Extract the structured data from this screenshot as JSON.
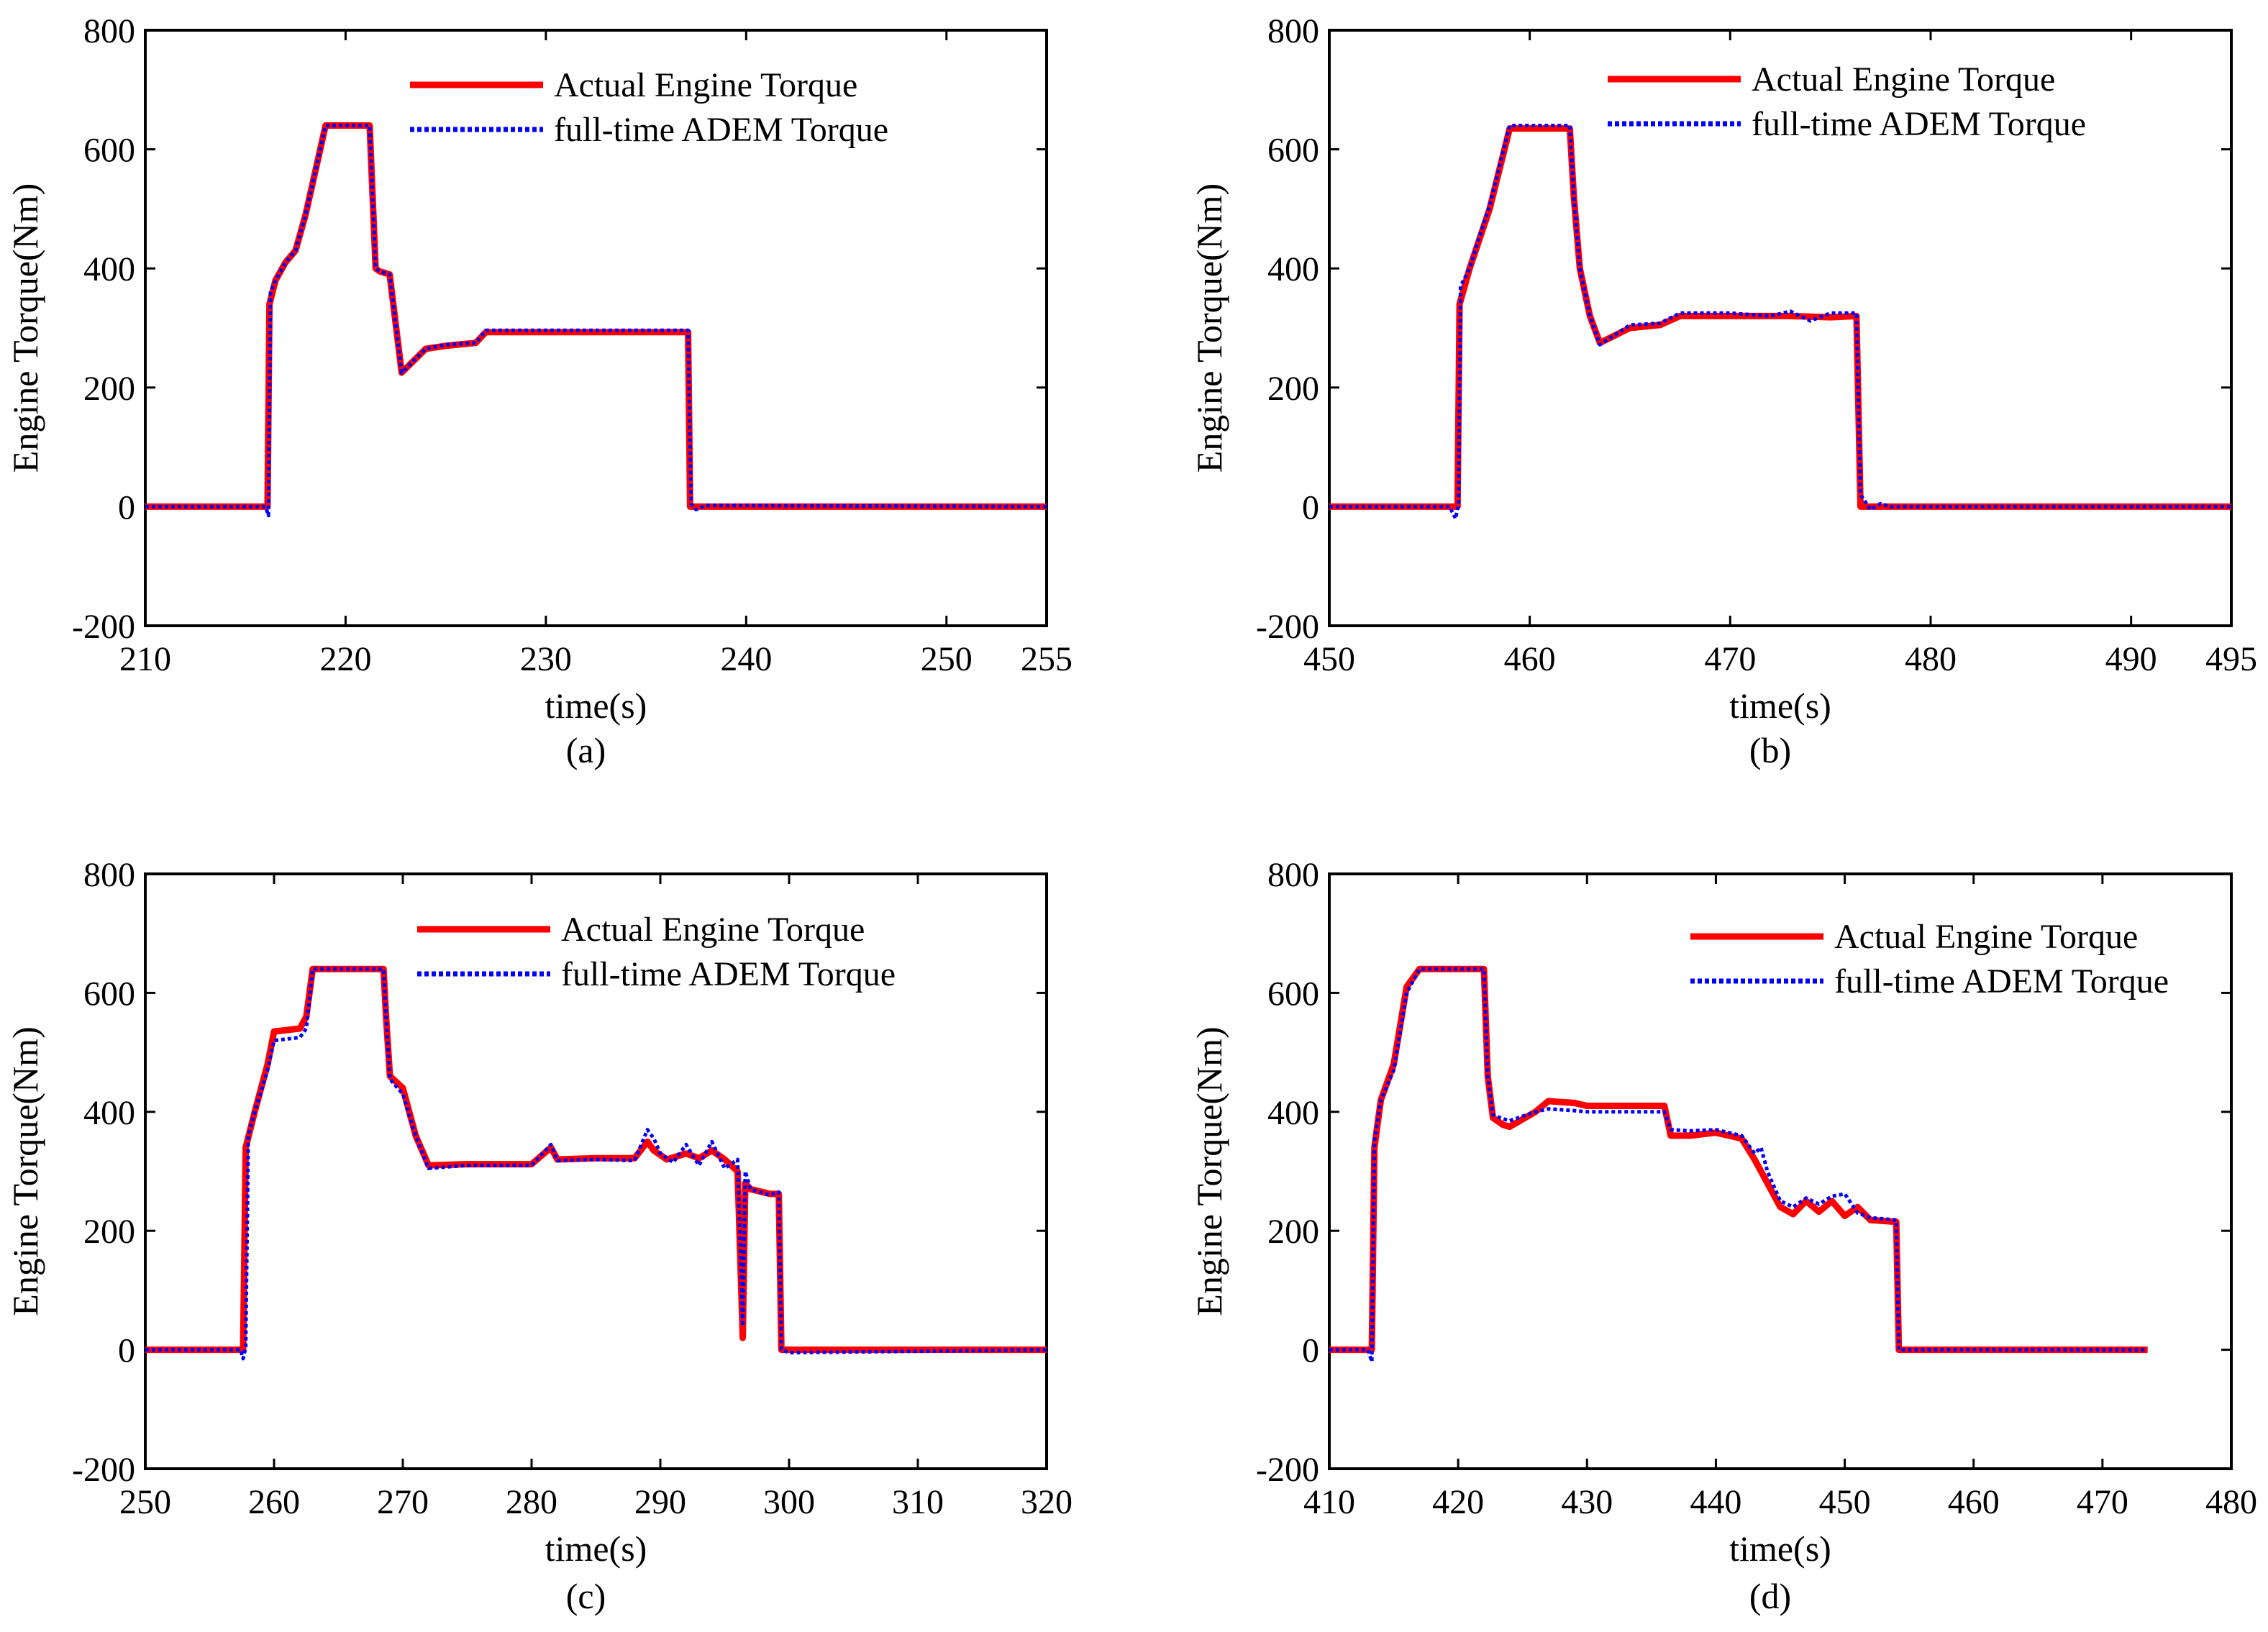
{
  "chart_data": [
    {
      "type": "line",
      "caption": "(a)",
      "xlabel": "time(s)",
      "ylabel": "Engine Torque(Nm)",
      "xlim": [
        210,
        255
      ],
      "ylim": [
        -200,
        800
      ],
      "xticks": [
        210,
        220,
        230,
        240,
        250,
        255
      ],
      "yticks": [
        -200,
        0,
        200,
        400,
        600,
        800
      ],
      "legend_position": "top-right",
      "series": [
        {
          "name": "Actual Engine Torque",
          "color": "#ff0000",
          "style": "solid",
          "x": [
            210,
            216.1,
            216.2,
            216.5,
            217,
            217.5,
            218,
            219,
            219.3,
            221.2,
            221.5,
            221.7,
            222.2,
            222.8,
            224,
            225,
            226.5,
            227,
            230,
            233,
            236,
            237.1,
            237.2,
            255
          ],
          "y": [
            0,
            0,
            340,
            380,
            410,
            430,
            490,
            640,
            640,
            640,
            400,
            395,
            390,
            225,
            265,
            270,
            275,
            293,
            293,
            293,
            293,
            293,
            0,
            0
          ]
        },
        {
          "name": "full-time ADEM Torque",
          "color": "#0000ff",
          "style": "dotted",
          "x": [
            210,
            216,
            216.15,
            216.25,
            216.5,
            217,
            217.5,
            218,
            219,
            219.3,
            221.2,
            221.5,
            221.7,
            222.2,
            222.8,
            224,
            225,
            226.5,
            227,
            230,
            233,
            236,
            237.1,
            237.25,
            237.5,
            238,
            255
          ],
          "y": [
            0,
            0,
            -15,
            360,
            380,
            410,
            430,
            490,
            640,
            640,
            640,
            400,
            395,
            390,
            225,
            265,
            272,
            275,
            296,
            296,
            296,
            296,
            296,
            5,
            -5,
            2,
            0
          ]
        }
      ]
    },
    {
      "type": "line",
      "caption": "(b)",
      "xlabel": "time(s)",
      "ylabel": "Engine Torque(Nm)",
      "xlim": [
        450,
        495
      ],
      "ylim": [
        -200,
        800
      ],
      "xticks": [
        450,
        460,
        470,
        480,
        490,
        495
      ],
      "yticks": [
        -200,
        0,
        200,
        400,
        600,
        800
      ],
      "legend_position": "top-right",
      "series": [
        {
          "name": "Actual Engine Torque",
          "color": "#ff0000",
          "style": "solid",
          "x": [
            450,
            456.4,
            456.5,
            457,
            457.5,
            458,
            459,
            462,
            462.2,
            462.5,
            463,
            463.5,
            465,
            466.5,
            467.5,
            470,
            473,
            475,
            476.3,
            476.5,
            495
          ],
          "y": [
            0,
            0,
            340,
            400,
            450,
            500,
            635,
            635,
            520,
            400,
            320,
            275,
            300,
            305,
            320,
            320,
            320,
            318,
            320,
            0,
            0
          ]
        },
        {
          "name": "full-time ADEM Torque",
          "color": "#0000ff",
          "style": "dotted",
          "x": [
            450,
            456,
            456.3,
            456.45,
            456.55,
            457,
            457.5,
            458,
            459,
            462,
            462.2,
            462.5,
            463,
            463.5,
            465,
            466.5,
            467.5,
            470,
            472,
            473,
            474,
            475,
            476.3,
            476.5,
            477,
            477.5,
            478,
            495
          ],
          "y": [
            0,
            0,
            -20,
            5,
            370,
            400,
            455,
            505,
            640,
            640,
            520,
            400,
            320,
            272,
            305,
            308,
            325,
            325,
            320,
            328,
            312,
            325,
            325,
            20,
            -5,
            5,
            0,
            0
          ]
        }
      ]
    },
    {
      "type": "line",
      "caption": "(c)",
      "xlabel": "time(s)",
      "ylabel": "Engine Torque(Nm)",
      "xlim": [
        250,
        320
      ],
      "ylim": [
        -200,
        800
      ],
      "xticks": [
        250,
        260,
        270,
        280,
        290,
        300,
        310,
        320
      ],
      "yticks": [
        -200,
        0,
        200,
        400,
        600,
        800
      ],
      "legend_position": "top-right",
      "series": [
        {
          "name": "Actual Engine Torque",
          "color": "#ff0000",
          "style": "solid",
          "x": [
            250,
            257.6,
            257.8,
            258.5,
            259.5,
            260,
            262,
            262.5,
            263,
            268.5,
            268.7,
            269,
            270,
            271,
            272,
            275,
            280,
            281.5,
            282,
            285,
            288,
            289,
            289.5,
            290.5,
            292,
            293,
            294,
            295,
            296,
            296.4,
            296.6,
            297,
            298.5,
            299.2,
            299.4,
            320
          ],
          "y": [
            0,
            0,
            340,
            400,
            480,
            535,
            540,
            560,
            640,
            640,
            560,
            460,
            440,
            360,
            310,
            312,
            312,
            340,
            320,
            322,
            322,
            350,
            335,
            320,
            330,
            322,
            335,
            320,
            300,
            20,
            280,
            270,
            262,
            262,
            0,
            0
          ]
        },
        {
          "name": "full-time ADEM Torque",
          "color": "#0000ff",
          "style": "dotted",
          "x": [
            250,
            257.4,
            257.6,
            257.8,
            258,
            258.5,
            259.5,
            260,
            262,
            262.5,
            263,
            268.5,
            268.7,
            269,
            270,
            271,
            272,
            275,
            280,
            281.5,
            282,
            285,
            288,
            289,
            289.5,
            290,
            291,
            292,
            293,
            294,
            295,
            296,
            296.4,
            296.6,
            297,
            298.5,
            299.2,
            299.4,
            300,
            320
          ],
          "y": [
            0,
            0,
            -15,
            5,
            360,
            400,
            470,
            520,
            525,
            540,
            640,
            640,
            560,
            455,
            430,
            360,
            305,
            310,
            310,
            345,
            318,
            320,
            318,
            370,
            355,
            330,
            315,
            345,
            310,
            350,
            305,
            320,
            40,
            300,
            270,
            260,
            265,
            0,
            -5,
            0
          ]
        }
      ]
    },
    {
      "type": "line",
      "caption": "(d)",
      "xlabel": "time(s)",
      "ylabel": "Engine Torque(Nm)",
      "xlim": [
        410,
        480
      ],
      "ylim": [
        -200,
        800
      ],
      "xticks": [
        410,
        420,
        430,
        440,
        450,
        460,
        470,
        480
      ],
      "yticks": [
        -200,
        0,
        200,
        400,
        600,
        800
      ],
      "legend_position": "top-right",
      "series": [
        {
          "name": "Actual Engine Torque",
          "color": "#ff0000",
          "style": "solid",
          "x": [
            410,
            413.3,
            413.5,
            414,
            415,
            416,
            417,
            422,
            422.3,
            422.7,
            423.5,
            424,
            426,
            427,
            429,
            430,
            433,
            436,
            436.5,
            438,
            440,
            442,
            443,
            444,
            445,
            446,
            447,
            448,
            449,
            450,
            451,
            452,
            454,
            454.2,
            473.5
          ],
          "y": [
            0,
            0,
            340,
            420,
            480,
            610,
            640,
            640,
            460,
            390,
            378,
            375,
            400,
            418,
            415,
            410,
            410,
            410,
            360,
            360,
            365,
            355,
            320,
            280,
            240,
            228,
            250,
            232,
            250,
            225,
            240,
            218,
            215,
            0,
            0
          ]
        },
        {
          "name": "full-time ADEM Torque",
          "color": "#0000ff",
          "style": "dotted",
          "x": [
            410,
            413,
            413.3,
            413.5,
            414,
            415,
            416,
            417,
            422,
            422.3,
            422.7,
            423.5,
            424,
            426,
            427,
            429,
            430,
            433,
            436,
            436.5,
            438,
            440,
            442,
            443,
            443.5,
            444,
            445,
            446,
            447,
            448,
            449,
            450,
            451,
            452,
            454,
            454.2,
            473.5
          ],
          "y": [
            0,
            0,
            -20,
            350,
            420,
            470,
            600,
            640,
            640,
            460,
            395,
            388,
            385,
            400,
            405,
            402,
            400,
            400,
            400,
            370,
            368,
            370,
            360,
            330,
            340,
            300,
            250,
            240,
            255,
            245,
            258,
            262,
            230,
            222,
            218,
            0,
            0
          ]
        }
      ]
    }
  ]
}
